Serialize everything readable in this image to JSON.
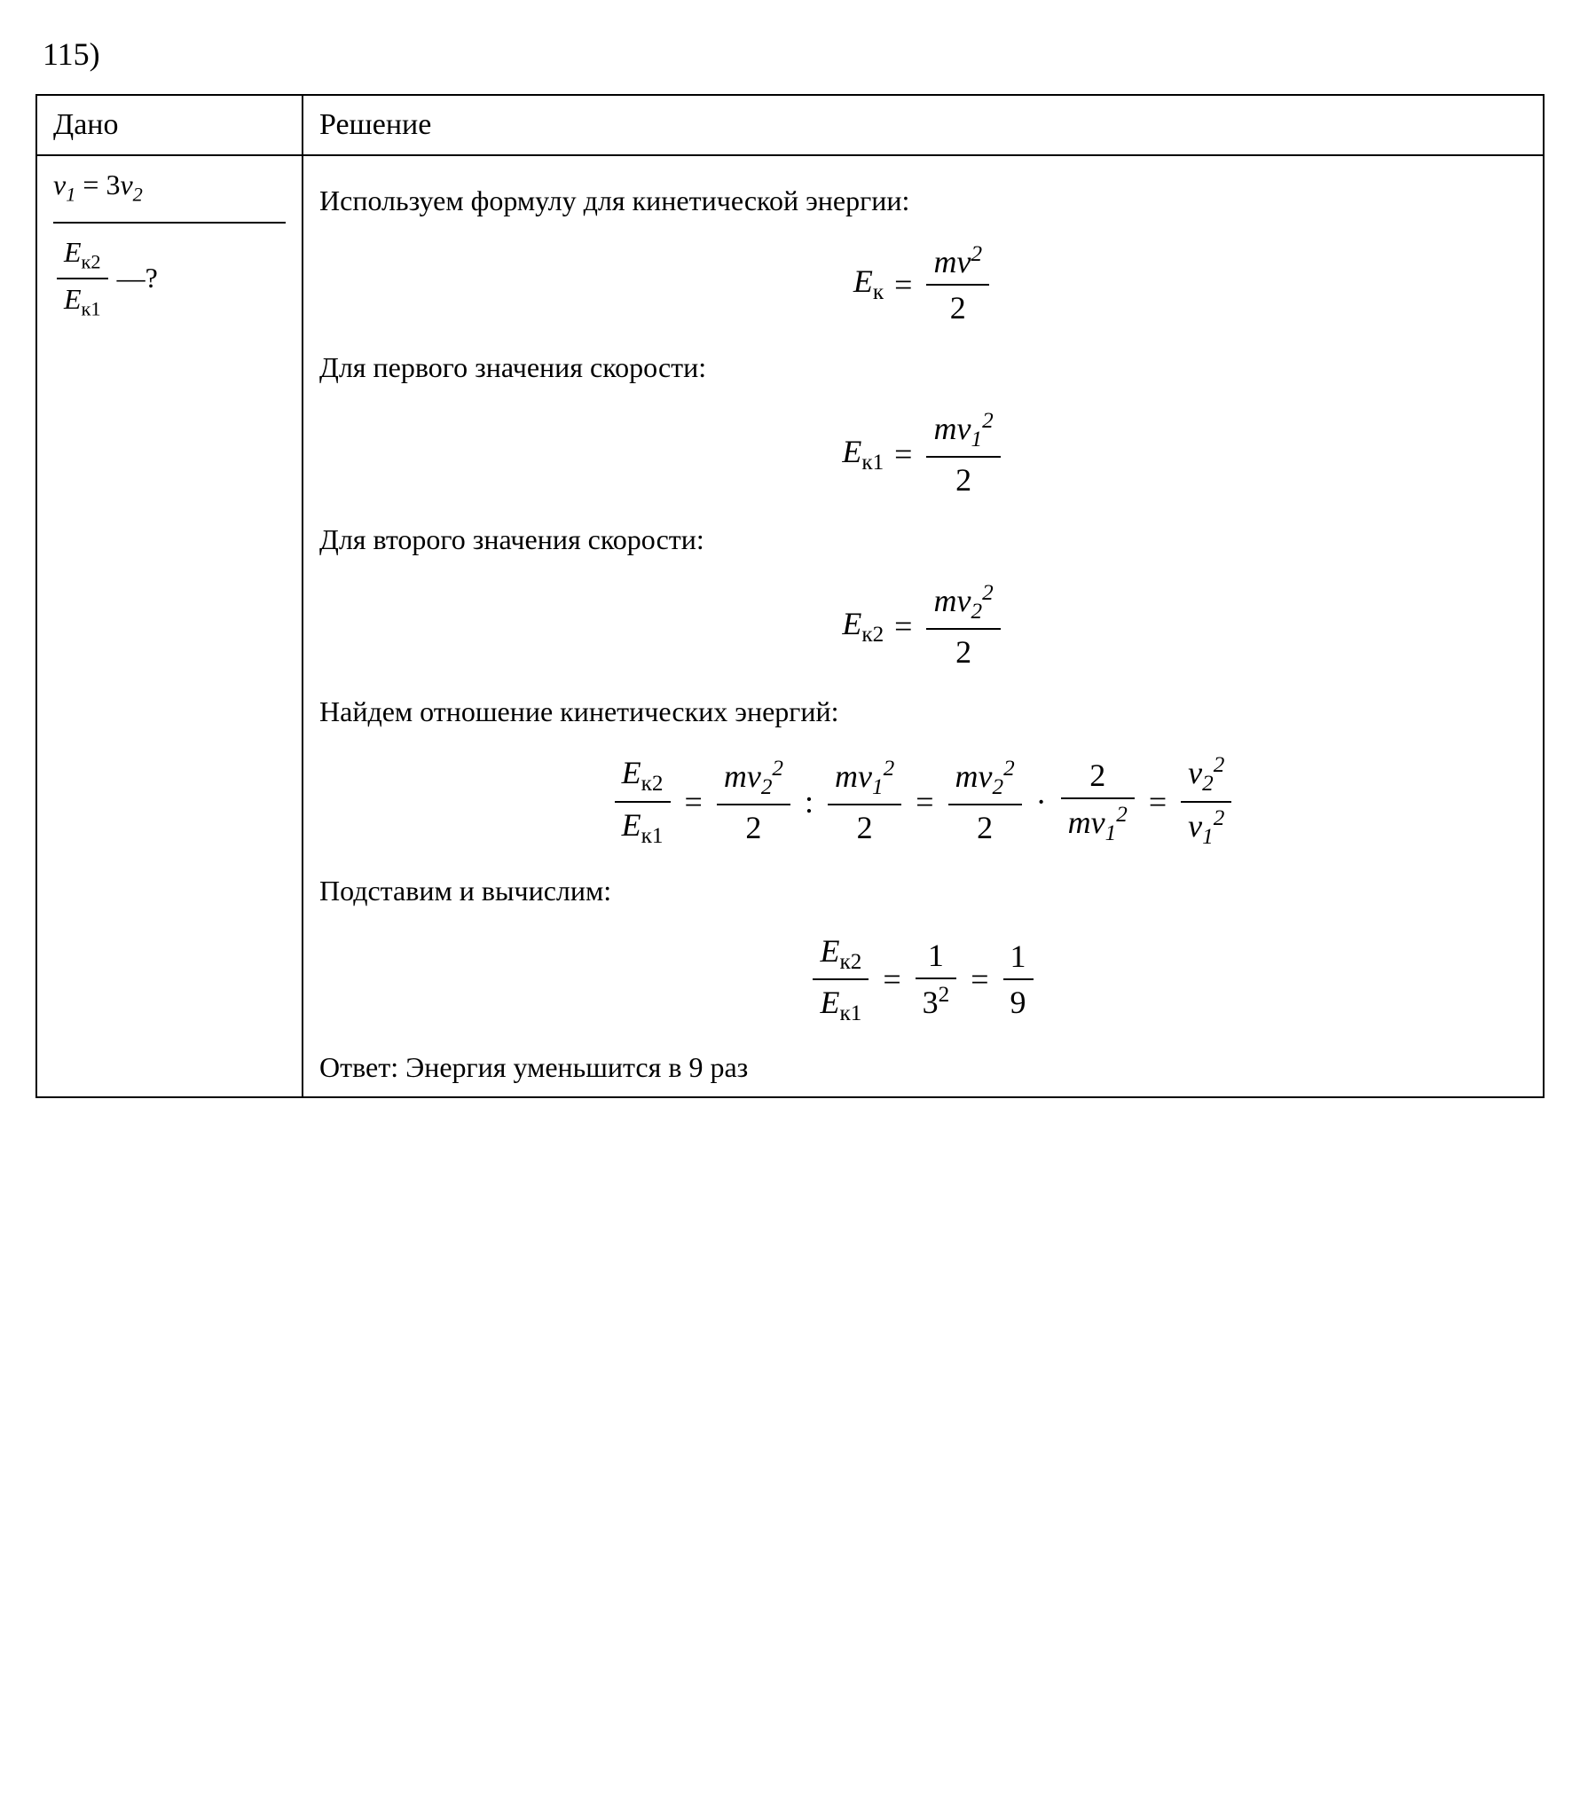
{
  "problem_number": "115)",
  "headers": {
    "given": "Дано",
    "solution": "Решение"
  },
  "given": {
    "relation_lhs_var": "v",
    "relation_lhs_sub": "1",
    "relation_eq": "= 3",
    "relation_rhs_var": "v",
    "relation_rhs_sub": "2",
    "find_num_var": "E",
    "find_num_sub": "к2",
    "find_den_var": "E",
    "find_den_sub": "к1",
    "find_suffix": "—?"
  },
  "solution": {
    "intro_text": "Используем формулу для кинетической энергии:",
    "formula_ek": {
      "lhs_var": "E",
      "lhs_sub": "к",
      "num": "mv",
      "num_sup": "2",
      "den": "2"
    },
    "first_speed_text": "Для первого значения скорости:",
    "formula_ek1": {
      "lhs_var": "E",
      "lhs_sub": "к1",
      "num_m": "m",
      "num_v": "v",
      "num_vsub": "1",
      "num_sup": "2",
      "den": "2"
    },
    "second_speed_text": "Для второго значения скорости:",
    "formula_ek2": {
      "lhs_var": "E",
      "lhs_sub": "к2",
      "num_m": "m",
      "num_v": "v",
      "num_vsub": "2",
      "num_sup": "2",
      "den": "2"
    },
    "ratio_text": "Найдем отношение кинетических энергий:",
    "ratio_formula": {
      "lhs_num_var": "E",
      "lhs_num_sub": "к2",
      "lhs_den_var": "E",
      "lhs_den_sub": "к1",
      "term1_num_m": "m",
      "term1_num_v": "v",
      "term1_num_vsub": "2",
      "term1_num_sup": "2",
      "term1_den": "2",
      "term2_num_m": "m",
      "term2_num_v": "v",
      "term2_num_vsub": "1",
      "term2_num_sup": "2",
      "term2_den": "2",
      "term3_num_m": "m",
      "term3_num_v": "v",
      "term3_num_vsub": "2",
      "term3_num_sup": "2",
      "term3_den": "2",
      "term4_num": "2",
      "term4_den_m": "m",
      "term4_den_v": "v",
      "term4_den_vsub": "1",
      "term4_den_sup": "2",
      "term5_num_v": "v",
      "term5_num_vsub": "2",
      "term5_num_sup": "2",
      "term5_den_v": "v",
      "term5_den_vsub": "1",
      "term5_den_sup": "2"
    },
    "substitute_text": "Подставим и вычислим:",
    "result_formula": {
      "lhs_num_var": "E",
      "lhs_num_sub": "к2",
      "lhs_den_var": "E",
      "lhs_den_sub": "к1",
      "mid_num": "1",
      "mid_den_base": "3",
      "mid_den_sup": "2",
      "res_num": "1",
      "res_den": "9"
    },
    "answer_label": "Ответ: ",
    "answer_text": "Энергия уменьшится в 9 раз"
  },
  "styling": {
    "background_color": "#ffffff",
    "text_color": "#000000",
    "border_color": "#000000",
    "font_family": "Times New Roman",
    "base_font_size": 32,
    "header_font_size": 34,
    "formula_font_size": 36
  }
}
